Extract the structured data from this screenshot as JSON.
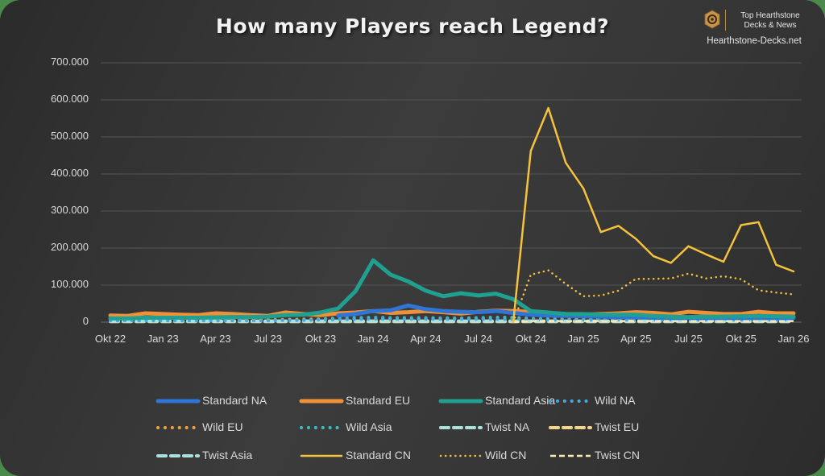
{
  "title": "How many Players reach Legend?",
  "brand": {
    "line1": "Top Hearthstone",
    "line2": "Decks & News",
    "url": "Hearthstone-Decks.net",
    "logo_icon": "hexagon-swirl-icon",
    "accent_color": "#c8954a"
  },
  "chart_data": {
    "type": "line",
    "title": "How many Players reach Legend?",
    "xlabel": "",
    "ylabel": "",
    "ylim": [
      0,
      700000
    ],
    "y_ticks": [
      "0",
      "100.000",
      "200.000",
      "300.000",
      "400.000",
      "500.000",
      "600.000",
      "700.000"
    ],
    "y_tick_values": [
      0,
      100000,
      200000,
      300000,
      400000,
      500000,
      600000,
      700000
    ],
    "grid": true,
    "legend_position": "bottom",
    "x_tick_labels": [
      "Okt 22",
      "Jan 23",
      "Apr 23",
      "Jul 23",
      "Okt 23",
      "Jan 24",
      "Apr 24",
      "Jul 24",
      "Okt 24",
      "Jan 25",
      "Apr 25",
      "Jul 25",
      "Okt 25",
      "Jan 26"
    ],
    "x": [
      "Okt 22",
      "Nov 22",
      "Dez 22",
      "Jan 23",
      "Feb 23",
      "Mär 23",
      "Apr 23",
      "Mai 23",
      "Jun 23",
      "Jul 23",
      "Aug 23",
      "Sep 23",
      "Okt 23",
      "Nov 23",
      "Dez 23",
      "Jan 24",
      "Feb 24",
      "Mär 24",
      "Apr 24",
      "Mai 24",
      "Jun 24",
      "Jul 24",
      "Aug 24",
      "Sep 24",
      "Okt 24",
      "Nov 24",
      "Dez 24",
      "Jan 25",
      "Feb 25",
      "Mär 25",
      "Apr 25",
      "Mai 25",
      "Jun 25",
      "Jul 25",
      "Aug 25",
      "Sep 25",
      "Okt 25",
      "Nov 25",
      "Dez 25",
      "Jan 26"
    ],
    "series": [
      {
        "name": "Standard NA",
        "color": "#2e75d6",
        "style": "solid",
        "width": 5,
        "values": [
          null,
          null,
          null,
          null,
          null,
          null,
          null,
          null,
          null,
          null,
          null,
          null,
          null,
          18000,
          22000,
          30000,
          32000,
          45000,
          35000,
          30000,
          28000,
          27000,
          30000,
          25000,
          20000,
          18000,
          17000,
          16000,
          15000,
          14000,
          13000,
          12000,
          11000,
          11000,
          11000,
          11000,
          11000,
          11000,
          11000,
          11000
        ]
      },
      {
        "name": "Standard EU",
        "color": "#f0913a",
        "style": "solid",
        "width": 5,
        "values": [
          18000,
          17000,
          24000,
          22000,
          20000,
          19000,
          24000,
          22000,
          19000,
          17000,
          26000,
          22000,
          19000,
          24000,
          26000,
          30000,
          25000,
          27000,
          30000,
          27000,
          23000,
          28000,
          31000,
          30000,
          28000,
          25000,
          22000,
          20000,
          22000,
          24000,
          27000,
          25000,
          21000,
          28000,
          25000,
          22000,
          22000,
          28000,
          24000,
          24000
        ]
      },
      {
        "name": "Standard Asia",
        "color": "#1fa090",
        "style": "solid",
        "width": 5,
        "values": [
          10000,
          10000,
          12000,
          12000,
          12000,
          12000,
          13000,
          14000,
          14000,
          15000,
          19000,
          20000,
          26000,
          37000,
          84000,
          167000,
          128000,
          110000,
          85000,
          70000,
          78000,
          72000,
          77000,
          62000,
          30000,
          26000,
          22000,
          22000,
          20000,
          20000,
          20000,
          17000,
          15000,
          14000,
          15000,
          15000,
          16000,
          17000,
          16000,
          15000
        ]
      },
      {
        "name": "Wild NA",
        "color": "#4aa8e0",
        "style": "dotted",
        "width": 4,
        "values": [
          4000,
          4000,
          4000,
          4000,
          4000,
          4000,
          4000,
          4000,
          4000,
          4000,
          5000,
          5000,
          6000,
          7000,
          8000,
          9000,
          9000,
          9000,
          9000,
          8000,
          8000,
          8000,
          8000,
          8000,
          7000,
          6000,
          6000,
          6000,
          6000,
          6000,
          6000,
          6000,
          6000,
          6000,
          6000,
          6000,
          6000,
          6000,
          6000,
          6000
        ]
      },
      {
        "name": "Wild EU",
        "color": "#f0a040",
        "style": "dotted",
        "width": 4,
        "values": [
          6000,
          6000,
          7000,
          7000,
          7000,
          7000,
          7000,
          7000,
          7000,
          6000,
          7000,
          7000,
          7000,
          7000,
          8000,
          9000,
          8000,
          8000,
          8000,
          8000,
          8000,
          8000,
          8000,
          8000,
          8000,
          7000,
          7000,
          7000,
          7000,
          7000,
          7000,
          7000,
          7000,
          7000,
          7000,
          7000,
          7000,
          7000,
          7000,
          7000
        ]
      },
      {
        "name": "Wild Asia",
        "color": "#3cbcbc",
        "style": "dotted",
        "width": 4,
        "values": [
          5000,
          5000,
          6000,
          6000,
          6000,
          6000,
          6000,
          6000,
          6000,
          6000,
          7000,
          8000,
          9000,
          11000,
          12000,
          13000,
          12000,
          12000,
          12000,
          11000,
          11000,
          12000,
          13000,
          13000,
          10000,
          9000,
          9000,
          9000,
          9000,
          9000,
          9000,
          9000,
          9000,
          9000,
          9000,
          9000,
          9000,
          9000,
          9000,
          9000
        ]
      },
      {
        "name": "Twist NA",
        "color": "#a9e3e0",
        "style": "dashed",
        "width": 4,
        "values": [
          3000,
          3000,
          3000,
          3000,
          3000,
          3000,
          3000,
          3000,
          3000,
          3000,
          3000,
          3000,
          3000,
          3000,
          3000,
          3000,
          3000,
          3000,
          3000,
          3000,
          3000,
          3000,
          3000,
          3000,
          3000,
          3000,
          3000,
          3000,
          3000,
          3000,
          3000,
          3000,
          3000,
          3000,
          3000,
          3000,
          3000,
          3000,
          3000,
          3000
        ]
      },
      {
        "name": "Twist EU",
        "color": "#f2d68a",
        "style": "dashed",
        "width": 4,
        "values": [
          2000,
          2000,
          2000,
          2000,
          2000,
          2000,
          2000,
          2000,
          2000,
          2000,
          2000,
          2000,
          2000,
          2000,
          2000,
          2000,
          2000,
          2000,
          2000,
          2000,
          2000,
          2000,
          2000,
          2000,
          2000,
          2000,
          2000,
          2000,
          2000,
          2000,
          2000,
          2000,
          2000,
          2000,
          2000,
          2000,
          2000,
          2000,
          2000,
          2000
        ]
      },
      {
        "name": "Twist Asia",
        "color": "#a9e3e0",
        "style": "dashed",
        "width": 4,
        "values": [
          1500,
          1500,
          1500,
          1500,
          1500,
          1500,
          1500,
          1500,
          1500,
          1500,
          1500,
          1500,
          1500,
          1500,
          1500,
          1500,
          1500,
          1500,
          1500,
          1500,
          1500,
          1500,
          1500,
          1500,
          1500,
          1500,
          1500,
          1500,
          1500,
          1500,
          1500,
          1500,
          1500,
          1500,
          1500,
          1500,
          1500,
          1500,
          1500,
          1500
        ]
      },
      {
        "name": "Standard CN",
        "color": "#f5c23c",
        "style": "solid",
        "width": 2.5,
        "values": [
          null,
          null,
          null,
          null,
          null,
          null,
          null,
          null,
          null,
          null,
          null,
          null,
          null,
          null,
          null,
          null,
          null,
          null,
          null,
          null,
          null,
          null,
          null,
          0,
          462000,
          578000,
          430000,
          361000,
          243000,
          260000,
          225000,
          178000,
          160000,
          205000,
          183000,
          163000,
          262000,
          270000,
          155000,
          137000
        ]
      },
      {
        "name": "Wild CN",
        "color": "#f5c23c",
        "style": "dotted-fine",
        "width": 2.5,
        "values": [
          null,
          null,
          null,
          null,
          null,
          null,
          null,
          null,
          null,
          null,
          null,
          null,
          null,
          null,
          null,
          null,
          null,
          null,
          null,
          null,
          null,
          null,
          null,
          0,
          128000,
          140000,
          103000,
          70000,
          72000,
          85000,
          117000,
          117000,
          118000,
          131000,
          118000,
          124000,
          116000,
          86000,
          80000,
          75000
        ]
      },
      {
        "name": "Twist CN",
        "color": "#fbe9b6",
        "style": "dashed-fine",
        "width": 2.5,
        "values": [
          null,
          null,
          null,
          null,
          null,
          null,
          null,
          null,
          null,
          null,
          null,
          null,
          null,
          null,
          null,
          null,
          null,
          null,
          null,
          null,
          null,
          null,
          null,
          0,
          3000,
          3000,
          3000,
          3000,
          3000,
          3000,
          3000,
          3000,
          3000,
          3000,
          3000,
          3000,
          3000,
          3000,
          3000,
          3000
        ]
      }
    ]
  }
}
